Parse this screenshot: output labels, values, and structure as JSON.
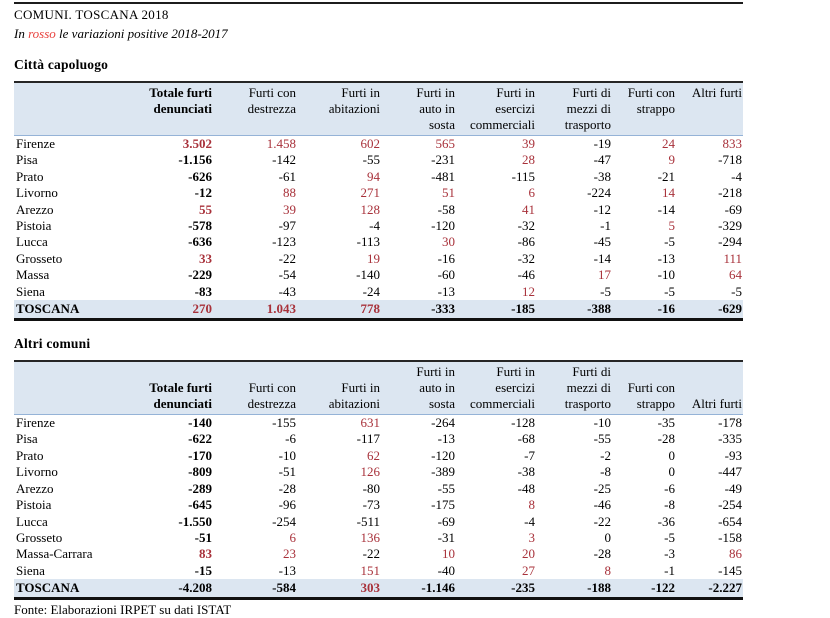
{
  "page": {
    "title": "COMUNI. TOSCANA 2018",
    "subtitle_prefix": "In ",
    "subtitle_red_word": "rosso",
    "subtitle_suffix": " le variazioni positive 2018-2017",
    "footer": "Fonte: Elaborazioni IRPET su dati ISTAT"
  },
  "colors": {
    "table_red": "#a8313a",
    "subtitle_red": "#e8403c",
    "header_bg": "#dce6f1",
    "header_underline": "#95b3d7"
  },
  "columns": [
    "Totale furti\ndenunciati",
    "Furti con\ndestrezza",
    "Furti in\nabitazioni",
    "Furti in\nauto in\nsosta",
    "Furti in\nesercizi\ncommerciali",
    "Furti di\nmezzi di\ntrasporto",
    "Furti con\nstrappo",
    "Altri furti"
  ],
  "tables": [
    {
      "heading": "Città capoluogo",
      "rows": [
        {
          "name": "Firenze",
          "values": [
            "3.502",
            "1.458",
            "602",
            "565",
            "39",
            "-19",
            "24",
            "833"
          ],
          "red": [
            1,
            1,
            1,
            1,
            1,
            0,
            1,
            1
          ],
          "total": false
        },
        {
          "name": "Pisa",
          "values": [
            "-1.156",
            "-142",
            "-55",
            "-231",
            "28",
            "-47",
            "9",
            "-718"
          ],
          "red": [
            0,
            0,
            0,
            0,
            1,
            0,
            1,
            0
          ],
          "total": false
        },
        {
          "name": "Prato",
          "values": [
            "-626",
            "-61",
            "94",
            "-481",
            "-115",
            "-38",
            "-21",
            "-4"
          ],
          "red": [
            0,
            0,
            1,
            0,
            0,
            0,
            0,
            0
          ],
          "total": false
        },
        {
          "name": "Livorno",
          "values": [
            "-12",
            "88",
            "271",
            "51",
            "6",
            "-224",
            "14",
            "-218"
          ],
          "red": [
            0,
            1,
            1,
            1,
            1,
            0,
            1,
            0
          ],
          "total": false
        },
        {
          "name": "Arezzo",
          "values": [
            "55",
            "39",
            "128",
            "-58",
            "41",
            "-12",
            "-14",
            "-69"
          ],
          "red": [
            1,
            1,
            1,
            0,
            1,
            0,
            0,
            0
          ],
          "total": false
        },
        {
          "name": "Pistoia",
          "values": [
            "-578",
            "-97",
            "-4",
            "-120",
            "-32",
            "-1",
            "5",
            "-329"
          ],
          "red": [
            0,
            0,
            0,
            0,
            0,
            0,
            1,
            0
          ],
          "total": false
        },
        {
          "name": "Lucca",
          "values": [
            "-636",
            "-123",
            "-113",
            "30",
            "-86",
            "-45",
            "-5",
            "-294"
          ],
          "red": [
            0,
            0,
            0,
            1,
            0,
            0,
            0,
            0
          ],
          "total": false
        },
        {
          "name": "Grosseto",
          "values": [
            "33",
            "-22",
            "19",
            "-16",
            "-32",
            "-14",
            "-13",
            "111"
          ],
          "red": [
            1,
            0,
            1,
            0,
            0,
            0,
            0,
            1
          ],
          "total": false
        },
        {
          "name": "Massa",
          "values": [
            "-229",
            "-54",
            "-140",
            "-60",
            "-46",
            "17",
            "-10",
            "64"
          ],
          "red": [
            0,
            0,
            0,
            0,
            0,
            1,
            0,
            1
          ],
          "total": false
        },
        {
          "name": "Siena",
          "values": [
            "-83",
            "-43",
            "-24",
            "-13",
            "12",
            "-5",
            "-5",
            "-5"
          ],
          "red": [
            0,
            0,
            0,
            0,
            1,
            0,
            0,
            0
          ],
          "total": false
        },
        {
          "name": "TOSCANA",
          "values": [
            "270",
            "1.043",
            "778",
            "-333",
            "-185",
            "-388",
            "-16",
            "-629"
          ],
          "red": [
            1,
            1,
            1,
            0,
            0,
            0,
            0,
            0
          ],
          "total": true
        }
      ]
    },
    {
      "heading": "Altri comuni",
      "rows": [
        {
          "name": "Firenze",
          "values": [
            "-140",
            "-155",
            "631",
            "-264",
            "-128",
            "-10",
            "-35",
            "-178"
          ],
          "red": [
            0,
            0,
            1,
            0,
            0,
            0,
            0,
            0
          ],
          "total": false
        },
        {
          "name": "Pisa",
          "values": [
            "-622",
            "-6",
            "-117",
            "-13",
            "-68",
            "-55",
            "-28",
            "-335"
          ],
          "red": [
            0,
            0,
            0,
            0,
            0,
            0,
            0,
            0
          ],
          "total": false
        },
        {
          "name": "Prato",
          "values": [
            "-170",
            "-10",
            "62",
            "-120",
            "-7",
            "-2",
            "0",
            "-93"
          ],
          "red": [
            0,
            0,
            1,
            0,
            0,
            0,
            0,
            0
          ],
          "total": false
        },
        {
          "name": "Livorno",
          "values": [
            "-809",
            "-51",
            "126",
            "-389",
            "-38",
            "-8",
            "0",
            "-447"
          ],
          "red": [
            0,
            0,
            1,
            0,
            0,
            0,
            0,
            0
          ],
          "total": false
        },
        {
          "name": "Arezzo",
          "values": [
            "-289",
            "-28",
            "-80",
            "-55",
            "-48",
            "-25",
            "-6",
            "-49"
          ],
          "red": [
            0,
            0,
            0,
            0,
            0,
            0,
            0,
            0
          ],
          "total": false
        },
        {
          "name": "Pistoia",
          "values": [
            "-645",
            "-96",
            "-73",
            "-175",
            "8",
            "-46",
            "-8",
            "-254"
          ],
          "red": [
            0,
            0,
            0,
            0,
            1,
            0,
            0,
            0
          ],
          "total": false
        },
        {
          "name": "Lucca",
          "values": [
            "-1.550",
            "-254",
            "-511",
            "-69",
            "-4",
            "-22",
            "-36",
            "-654"
          ],
          "red": [
            0,
            0,
            0,
            0,
            0,
            0,
            0,
            0
          ],
          "total": false
        },
        {
          "name": "Grosseto",
          "values": [
            "-51",
            "6",
            "136",
            "-31",
            "3",
            "0",
            "-5",
            "-158"
          ],
          "red": [
            0,
            1,
            1,
            0,
            1,
            0,
            0,
            0
          ],
          "total": false
        },
        {
          "name": "Massa-Carrara",
          "values": [
            "83",
            "23",
            "-22",
            "10",
            "20",
            "-28",
            "-3",
            "86"
          ],
          "red": [
            1,
            1,
            0,
            1,
            1,
            0,
            0,
            1
          ],
          "total": false
        },
        {
          "name": "Siena",
          "values": [
            "-15",
            "-13",
            "151",
            "-40",
            "27",
            "8",
            "-1",
            "-145"
          ],
          "red": [
            0,
            0,
            1,
            0,
            1,
            1,
            0,
            0
          ],
          "total": false
        },
        {
          "name": "TOSCANA",
          "values": [
            "-4.208",
            "-584",
            "303",
            "-1.146",
            "-235",
            "-188",
            "-122",
            "-2.227"
          ],
          "red": [
            0,
            0,
            1,
            0,
            0,
            0,
            0,
            0
          ],
          "total": true
        }
      ]
    }
  ]
}
